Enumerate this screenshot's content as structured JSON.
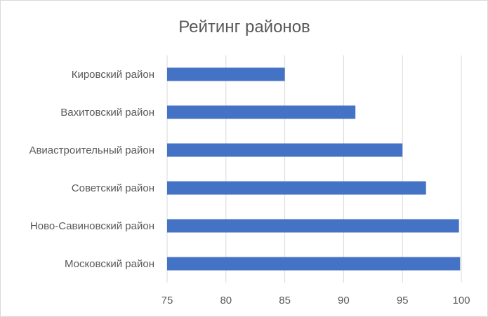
{
  "chart_data": {
    "type": "bar",
    "orientation": "horizontal",
    "title": "Рейтинг районов",
    "categories": [
      "Кировский район",
      "Вахитовский район",
      "Авиастроительный район",
      "Советский район",
      "Ново-Савиновский район",
      "Московский район"
    ],
    "values": [
      85,
      91,
      95,
      97,
      99.8,
      99.9
    ],
    "xlim": [
      75,
      100
    ],
    "xticks": [
      "75",
      "80",
      "85",
      "90",
      "95",
      "100"
    ],
    "xlabel": "",
    "ylabel": "",
    "grid": "vertical",
    "legend": "none",
    "bar_color": "#4472c4",
    "grid_color": "#d9d9d9",
    "text_color": "#595959"
  }
}
